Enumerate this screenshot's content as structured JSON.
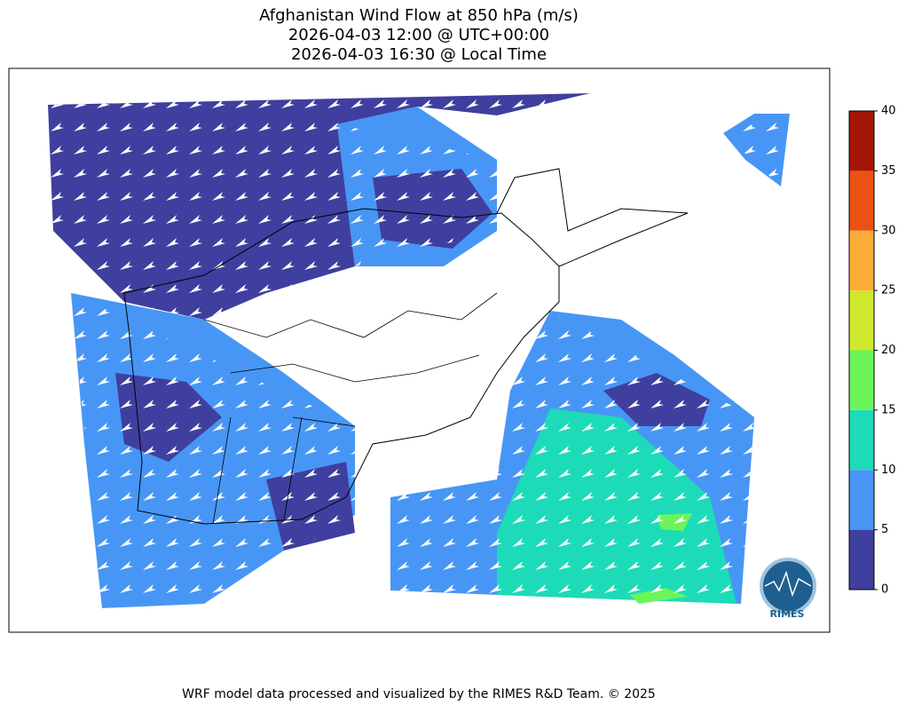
{
  "title_lines": [
    "Afghanistan Wind Flow at 850 hPa (m/s)",
    "2026-04-03 12:00 @ UTC+00:00",
    "2026-04-03 16:30 @ Local Time"
  ],
  "colorbar": {
    "lim": [
      0,
      40
    ],
    "ticks": [
      0,
      5,
      10,
      15,
      20,
      25,
      30,
      35,
      40
    ],
    "colors": [
      "#3f3f9f",
      "#4796f5",
      "#1ddbb8",
      "#6bf55a",
      "#cfe92f",
      "#fcac36",
      "#ea5113",
      "#a31606"
    ]
  },
  "logo_text": "RIMES",
  "footer": "WRF model data processed and visualized by the RIMES R&D Team. © 2025"
}
